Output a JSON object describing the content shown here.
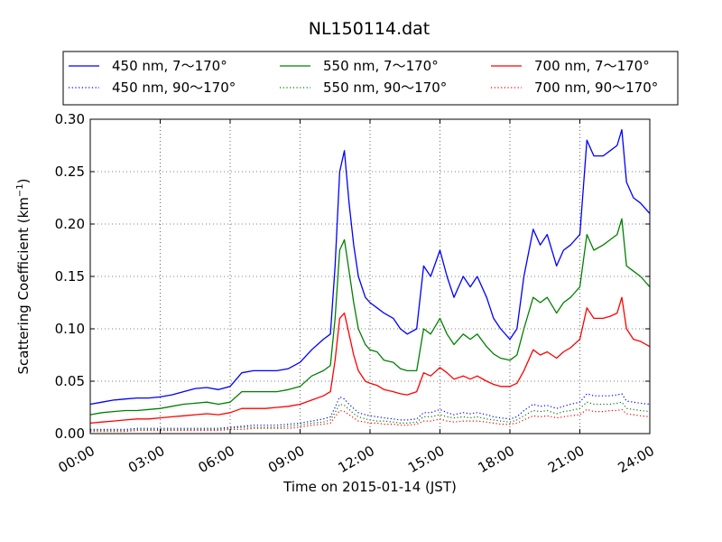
{
  "chart_data": {
    "type": "line",
    "title": "NL150114.dat",
    "xlabel": "Time on 2015-01-14 (JST)",
    "ylabel_main": "Scattering Coefficient (km",
    "ylabel_sup": "−1",
    "ylabel_end": ")",
    "xlim": [
      0,
      24
    ],
    "ylim": [
      0,
      0.3
    ],
    "grid": true,
    "legend_position": "top",
    "x_ticks": [
      {
        "value": 0,
        "label": "00:00"
      },
      {
        "value": 3,
        "label": "03:00"
      },
      {
        "value": 6,
        "label": "06:00"
      },
      {
        "value": 9,
        "label": "09:00"
      },
      {
        "value": 12,
        "label": "12:00"
      },
      {
        "value": 15,
        "label": "15:00"
      },
      {
        "value": 18,
        "label": "18:00"
      },
      {
        "value": 21,
        "label": "21:00"
      },
      {
        "value": 24,
        "label": "24:00"
      }
    ],
    "y_ticks": [
      {
        "value": 0.0,
        "label": "0.00"
      },
      {
        "value": 0.05,
        "label": "0.05"
      },
      {
        "value": 0.1,
        "label": "0.10"
      },
      {
        "value": 0.15,
        "label": "0.15"
      },
      {
        "value": 0.2,
        "label": "0.20"
      },
      {
        "value": 0.25,
        "label": "0.25"
      },
      {
        "value": 0.3,
        "label": "0.30"
      }
    ],
    "x": [
      0,
      0.5,
      1,
      1.5,
      2,
      2.5,
      3,
      3.5,
      4,
      4.5,
      5,
      5.5,
      6,
      6.5,
      7,
      7.5,
      8,
      8.5,
      9,
      9.5,
      10,
      10.3,
      10.5,
      10.7,
      10.9,
      11.1,
      11.3,
      11.5,
      11.8,
      12,
      12.3,
      12.6,
      13,
      13.3,
      13.6,
      14,
      14.3,
      14.6,
      15,
      15.3,
      15.6,
      16,
      16.3,
      16.6,
      17,
      17.3,
      17.6,
      18,
      18.3,
      18.6,
      19,
      19.3,
      19.6,
      20,
      20.3,
      20.6,
      21,
      21.3,
      21.6,
      22,
      22.3,
      22.6,
      22.8,
      23,
      23.3,
      23.6,
      24
    ],
    "series": [
      {
        "name": "450 nm, 7～170°",
        "color": "#0000ff",
        "dash": "solid",
        "values": [
          0.028,
          0.03,
          0.032,
          0.033,
          0.034,
          0.034,
          0.035,
          0.037,
          0.04,
          0.043,
          0.044,
          0.042,
          0.045,
          0.058,
          0.06,
          0.06,
          0.06,
          0.062,
          0.068,
          0.08,
          0.09,
          0.095,
          0.16,
          0.25,
          0.27,
          0.22,
          0.18,
          0.15,
          0.13,
          0.125,
          0.12,
          0.115,
          0.11,
          0.1,
          0.095,
          0.1,
          0.16,
          0.15,
          0.175,
          0.15,
          0.13,
          0.15,
          0.14,
          0.15,
          0.13,
          0.11,
          0.1,
          0.09,
          0.1,
          0.15,
          0.195,
          0.18,
          0.19,
          0.16,
          0.175,
          0.18,
          0.19,
          0.28,
          0.265,
          0.265,
          0.27,
          0.275,
          0.29,
          0.24,
          0.225,
          0.22,
          0.21
        ]
      },
      {
        "name": "550 nm, 7～170°",
        "color": "#008000",
        "dash": "solid",
        "values": [
          0.018,
          0.02,
          0.021,
          0.022,
          0.022,
          0.023,
          0.024,
          0.026,
          0.028,
          0.029,
          0.03,
          0.028,
          0.03,
          0.04,
          0.04,
          0.04,
          0.04,
          0.042,
          0.045,
          0.055,
          0.06,
          0.065,
          0.11,
          0.175,
          0.185,
          0.155,
          0.125,
          0.1,
          0.085,
          0.08,
          0.078,
          0.07,
          0.068,
          0.062,
          0.06,
          0.06,
          0.1,
          0.095,
          0.11,
          0.095,
          0.085,
          0.095,
          0.09,
          0.095,
          0.083,
          0.076,
          0.072,
          0.07,
          0.075,
          0.1,
          0.13,
          0.125,
          0.13,
          0.115,
          0.125,
          0.13,
          0.14,
          0.19,
          0.175,
          0.18,
          0.185,
          0.19,
          0.205,
          0.16,
          0.155,
          0.15,
          0.14
        ]
      },
      {
        "name": "700 nm, 7～170°",
        "color": "#ff0000",
        "dash": "solid",
        "values": [
          0.01,
          0.011,
          0.012,
          0.013,
          0.014,
          0.014,
          0.015,
          0.016,
          0.017,
          0.018,
          0.019,
          0.018,
          0.02,
          0.024,
          0.024,
          0.024,
          0.025,
          0.026,
          0.028,
          0.032,
          0.036,
          0.04,
          0.07,
          0.11,
          0.115,
          0.095,
          0.075,
          0.06,
          0.05,
          0.048,
          0.046,
          0.042,
          0.04,
          0.038,
          0.037,
          0.04,
          0.058,
          0.055,
          0.063,
          0.058,
          0.052,
          0.055,
          0.052,
          0.055,
          0.05,
          0.047,
          0.045,
          0.045,
          0.048,
          0.06,
          0.08,
          0.075,
          0.078,
          0.072,
          0.078,
          0.082,
          0.09,
          0.12,
          0.11,
          0.11,
          0.112,
          0.115,
          0.13,
          0.1,
          0.09,
          0.088,
          0.083
        ]
      },
      {
        "name": "450 nm, 90～170°",
        "color": "#0000ff",
        "dash": "dotted",
        "values": [
          0.004,
          0.004,
          0.004,
          0.004,
          0.005,
          0.005,
          0.005,
          0.005,
          0.005,
          0.005,
          0.005,
          0.005,
          0.006,
          0.007,
          0.008,
          0.008,
          0.008,
          0.009,
          0.01,
          0.012,
          0.014,
          0.016,
          0.025,
          0.035,
          0.033,
          0.028,
          0.024,
          0.02,
          0.018,
          0.017,
          0.016,
          0.015,
          0.014,
          0.013,
          0.013,
          0.014,
          0.02,
          0.02,
          0.023,
          0.02,
          0.018,
          0.02,
          0.019,
          0.02,
          0.018,
          0.016,
          0.015,
          0.014,
          0.016,
          0.022,
          0.028,
          0.026,
          0.027,
          0.024,
          0.026,
          0.028,
          0.03,
          0.038,
          0.036,
          0.036,
          0.036,
          0.037,
          0.038,
          0.031,
          0.03,
          0.029,
          0.028
        ]
      },
      {
        "name": "550 nm, 90～170°",
        "color": "#008000",
        "dash": "dotted",
        "values": [
          0.003,
          0.003,
          0.003,
          0.003,
          0.004,
          0.004,
          0.004,
          0.004,
          0.004,
          0.004,
          0.004,
          0.004,
          0.005,
          0.006,
          0.006,
          0.006,
          0.006,
          0.007,
          0.008,
          0.01,
          0.011,
          0.013,
          0.02,
          0.028,
          0.027,
          0.023,
          0.019,
          0.016,
          0.014,
          0.013,
          0.012,
          0.012,
          0.011,
          0.01,
          0.01,
          0.011,
          0.016,
          0.016,
          0.018,
          0.016,
          0.015,
          0.016,
          0.015,
          0.016,
          0.014,
          0.013,
          0.012,
          0.011,
          0.013,
          0.017,
          0.022,
          0.021,
          0.022,
          0.019,
          0.021,
          0.022,
          0.024,
          0.03,
          0.028,
          0.028,
          0.028,
          0.029,
          0.03,
          0.024,
          0.023,
          0.022,
          0.021
        ]
      },
      {
        "name": "700 nm, 90～170°",
        "color": "#ff0000",
        "dash": "dotted",
        "values": [
          0.002,
          0.002,
          0.002,
          0.002,
          0.003,
          0.003,
          0.003,
          0.003,
          0.003,
          0.003,
          0.003,
          0.003,
          0.004,
          0.004,
          0.005,
          0.005,
          0.005,
          0.005,
          0.006,
          0.008,
          0.009,
          0.01,
          0.016,
          0.022,
          0.021,
          0.018,
          0.015,
          0.012,
          0.011,
          0.01,
          0.01,
          0.009,
          0.009,
          0.008,
          0.008,
          0.009,
          0.012,
          0.012,
          0.014,
          0.012,
          0.011,
          0.012,
          0.012,
          0.012,
          0.011,
          0.01,
          0.009,
          0.009,
          0.01,
          0.013,
          0.017,
          0.016,
          0.017,
          0.015,
          0.016,
          0.017,
          0.018,
          0.023,
          0.021,
          0.021,
          0.022,
          0.022,
          0.023,
          0.019,
          0.018,
          0.017,
          0.016
        ]
      }
    ],
    "legend_order": [
      0,
      1,
      2,
      3,
      4,
      5
    ]
  }
}
